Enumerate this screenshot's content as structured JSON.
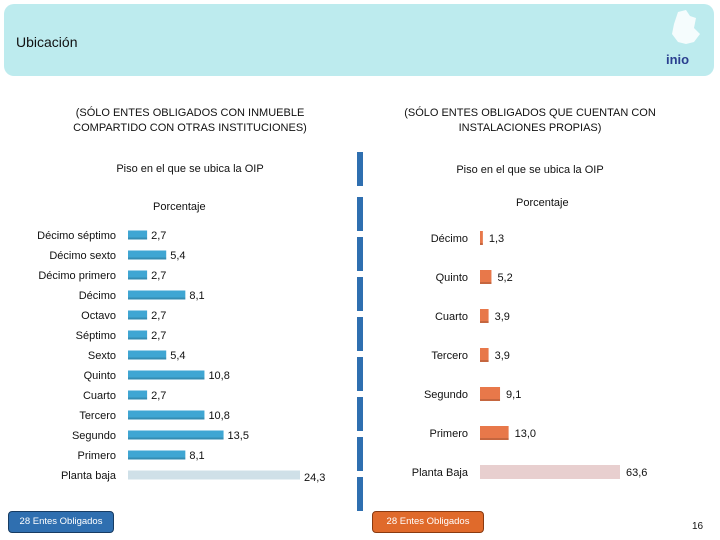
{
  "header": {
    "title": "Ubicación",
    "logo_text": "inio"
  },
  "left": {
    "section_title_line1": "(SÓLO ENTES OBLIGADOS CON INMUEBLE",
    "section_title_line2": "COMPARTIDO CON OTRAS INSTITUCIONES)",
    "subtitle": "Piso en el que se ubica la OIP",
    "axis_title": "Porcentaje",
    "badge": "28 Entes Obligados"
  },
  "right": {
    "section_title_line1": "(SÓLO ENTES OBLIGADOS QUE CUENTAN CON",
    "section_title_line2": "INSTALACIONES PROPIAS)",
    "subtitle": "Piso en el que se ubica la OIP",
    "axis_title": "Porcentaje",
    "badge": "28 Entes Obligados"
  },
  "page_number": "16",
  "chart_data": [
    {
      "type": "bar",
      "orientation": "horizontal",
      "title": "Piso en el que se ubica la OIP",
      "xlabel": "Porcentaje",
      "categories": [
        "Décimo séptimo",
        "Décimo sexto",
        "Décimo primero",
        "Décimo",
        "Octavo",
        "Séptimo",
        "Sexto",
        "Quinto",
        "Cuarto",
        "Tercero",
        "Segundo",
        "Primero",
        "Planta baja"
      ],
      "values": [
        2.7,
        5.4,
        2.7,
        8.1,
        2.7,
        2.7,
        5.4,
        10.8,
        2.7,
        10.8,
        13.5,
        8.1,
        24.3
      ],
      "value_labels": [
        "2,7",
        "5,4",
        "2,7",
        "8,1",
        "2,7",
        "2,7",
        "5,4",
        "10,8",
        "2,7",
        "10,8",
        "13,5",
        "8,1",
        "24,3"
      ],
      "xlim": [
        0,
        24.3
      ],
      "colors": {
        "bar": "#3fa6d3",
        "highlight": "#cfe0e8"
      },
      "grid": false
    },
    {
      "type": "bar",
      "orientation": "horizontal",
      "title": "Piso en el que se ubica la OIP",
      "xlabel": "Porcentaje",
      "categories": [
        "Décimo",
        "Quinto",
        "Cuarto",
        "Tercero",
        "Segundo",
        "Primero",
        "Planta Baja"
      ],
      "values": [
        1.3,
        5.2,
        3.9,
        3.9,
        9.1,
        13.0,
        63.6
      ],
      "value_labels": [
        "1,3",
        "5,2",
        "3,9",
        "3,9",
        "9,1",
        "13,0",
        "63,6"
      ],
      "xlim": [
        0,
        63.6
      ],
      "colors": {
        "bar": "#e8784a",
        "highlight": "#e8cfcf"
      },
      "grid": false
    }
  ]
}
